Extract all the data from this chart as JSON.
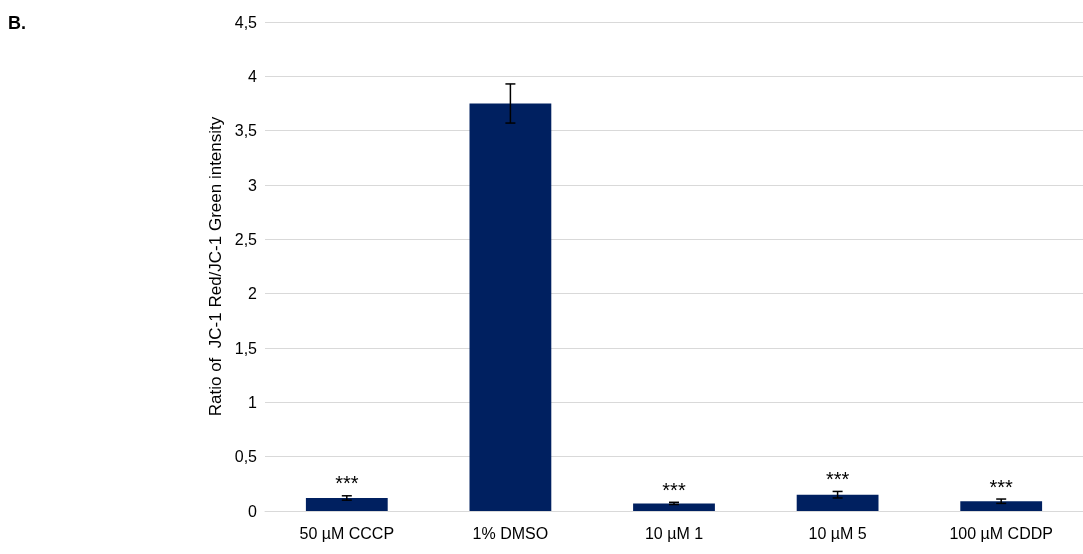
{
  "chart_data": {
    "type": "bar",
    "ylabel": "Ratio of  JC-1 Red/JC-1 Green intensity",
    "categories": [
      "50 µM CCCP",
      "1% DMSO",
      "10 µM 1",
      "10 µM 5",
      "100 µM CDDP"
    ],
    "values": [
      0.12,
      3.75,
      0.07,
      0.15,
      0.09
    ],
    "errors": [
      0.02,
      0.18,
      0.01,
      0.03,
      0.02
    ],
    "color": "#002060",
    "ylim": [
      0,
      4.5
    ],
    "yticks": [
      0,
      {
        "value": 0.5,
        "label": "0,5"
      },
      1,
      {
        "value": 1.5,
        "label": "1,5"
      },
      2,
      {
        "value": 2.5,
        "label": "2,5"
      },
      3,
      {
        "value": 3.5,
        "label": "3,5"
      },
      4,
      {
        "value": 4.5,
        "label": "4,5"
      }
    ],
    "grid": "y",
    "annotations": [
      "B.",
      {
        "text": "***",
        "x": "50 µM CCCP",
        "y": 0.14
      },
      {
        "text": "***",
        "x": "10 µM 1",
        "y": 0.08
      },
      {
        "text": "***",
        "x": "10 µM 5",
        "y": 0.18
      },
      {
        "text": "***",
        "x": "100 µM CDDP",
        "y": 0.11
      }
    ]
  }
}
